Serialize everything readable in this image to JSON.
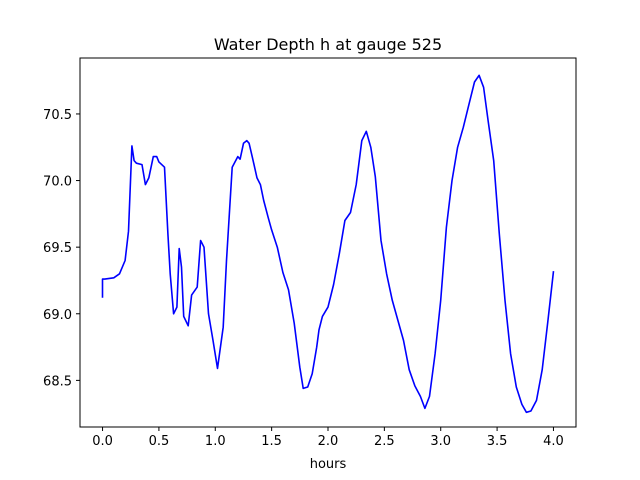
{
  "chart_data": {
    "type": "line",
    "title": "Water Depth h at gauge 525",
    "xlabel": "hours",
    "ylabel": "",
    "xlim": [
      -0.2,
      4.2
    ],
    "ylim": [
      68.15,
      70.92
    ],
    "xticks": [
      0.0,
      0.5,
      1.0,
      1.5,
      2.0,
      2.5,
      3.0,
      3.5,
      4.0
    ],
    "xtick_labels": [
      "0.0",
      "0.5",
      "1.0",
      "1.5",
      "2.0",
      "2.5",
      "3.0",
      "3.5",
      "4.0"
    ],
    "yticks": [
      68.5,
      69.0,
      69.5,
      70.0,
      70.5
    ],
    "ytick_labels": [
      "68.5",
      "69.0",
      "69.5",
      "70.0",
      "70.5"
    ],
    "grid": false,
    "series": [
      {
        "color": "#0000ff",
        "x": [
          0.0,
          0.0,
          0.02,
          0.1,
          0.15,
          0.2,
          0.23,
          0.26,
          0.28,
          0.3,
          0.35,
          0.38,
          0.41,
          0.45,
          0.48,
          0.5,
          0.55,
          0.58,
          0.6,
          0.63,
          0.66,
          0.68,
          0.7,
          0.72,
          0.76,
          0.79,
          0.84,
          0.87,
          0.9,
          0.94,
          0.98,
          1.02,
          1.07,
          1.1,
          1.15,
          1.2,
          1.22,
          1.25,
          1.28,
          1.3,
          1.33,
          1.37,
          1.4,
          1.43,
          1.47,
          1.5,
          1.55,
          1.6,
          1.65,
          1.7,
          1.75,
          1.78,
          1.82,
          1.86,
          1.9,
          1.92,
          1.95,
          2.0,
          2.05,
          2.1,
          2.15,
          2.2,
          2.25,
          2.3,
          2.34,
          2.38,
          2.42,
          2.47,
          2.52,
          2.57,
          2.62,
          2.67,
          2.72,
          2.77,
          2.82,
          2.86,
          2.9,
          2.95,
          3.0,
          3.05,
          3.1,
          3.15,
          3.2,
          3.25,
          3.3,
          3.34,
          3.38,
          3.42,
          3.47,
          3.52,
          3.57,
          3.62,
          3.67,
          3.72,
          3.76,
          3.8,
          3.85,
          3.9,
          3.95,
          4.0
        ],
        "y": [
          69.12,
          69.26,
          69.26,
          69.27,
          69.3,
          69.4,
          69.62,
          70.26,
          70.15,
          70.13,
          70.12,
          69.97,
          70.02,
          70.18,
          70.18,
          70.14,
          70.1,
          69.6,
          69.3,
          69.0,
          69.05,
          69.49,
          69.35,
          68.98,
          68.91,
          69.14,
          69.2,
          69.55,
          69.5,
          69.0,
          68.8,
          68.59,
          68.9,
          69.4,
          70.1,
          70.18,
          70.16,
          70.28,
          70.3,
          70.28,
          70.17,
          70.02,
          69.97,
          69.85,
          69.72,
          69.63,
          69.5,
          69.31,
          69.18,
          68.93,
          68.6,
          68.44,
          68.45,
          68.55,
          68.75,
          68.88,
          68.98,
          69.05,
          69.22,
          69.45,
          69.7,
          69.76,
          69.97,
          70.3,
          70.37,
          70.25,
          70.03,
          69.55,
          69.3,
          69.1,
          68.95,
          68.8,
          68.58,
          68.46,
          68.38,
          68.29,
          68.38,
          68.7,
          69.1,
          69.65,
          70.0,
          70.25,
          70.4,
          70.57,
          70.74,
          70.79,
          70.7,
          70.45,
          70.15,
          69.6,
          69.1,
          68.7,
          68.45,
          68.32,
          68.26,
          68.27,
          68.35,
          68.58,
          68.94,
          69.32
        ]
      }
    ]
  }
}
